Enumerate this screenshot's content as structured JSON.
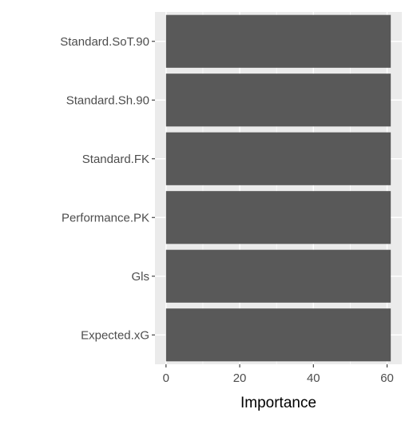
{
  "chart_data": {
    "type": "bar",
    "orientation": "horizontal",
    "categories": [
      "Standard.SoT.90",
      "Standard.Sh.90",
      "Standard.FK",
      "Performance.PK",
      "Gls",
      "Expected.xG"
    ],
    "values": [
      61,
      61,
      61,
      61,
      61,
      61
    ],
    "title": "",
    "xlabel": "Importance",
    "ylabel": "",
    "xlim": [
      -3,
      64
    ],
    "xticks": [
      0,
      20,
      40,
      60
    ],
    "grid": true,
    "colors": {
      "panel": "#ebebeb",
      "grid": "#ffffff",
      "bar": "#595959",
      "tick_text": "#4d4d4d",
      "tick_mark": "#333333"
    }
  }
}
